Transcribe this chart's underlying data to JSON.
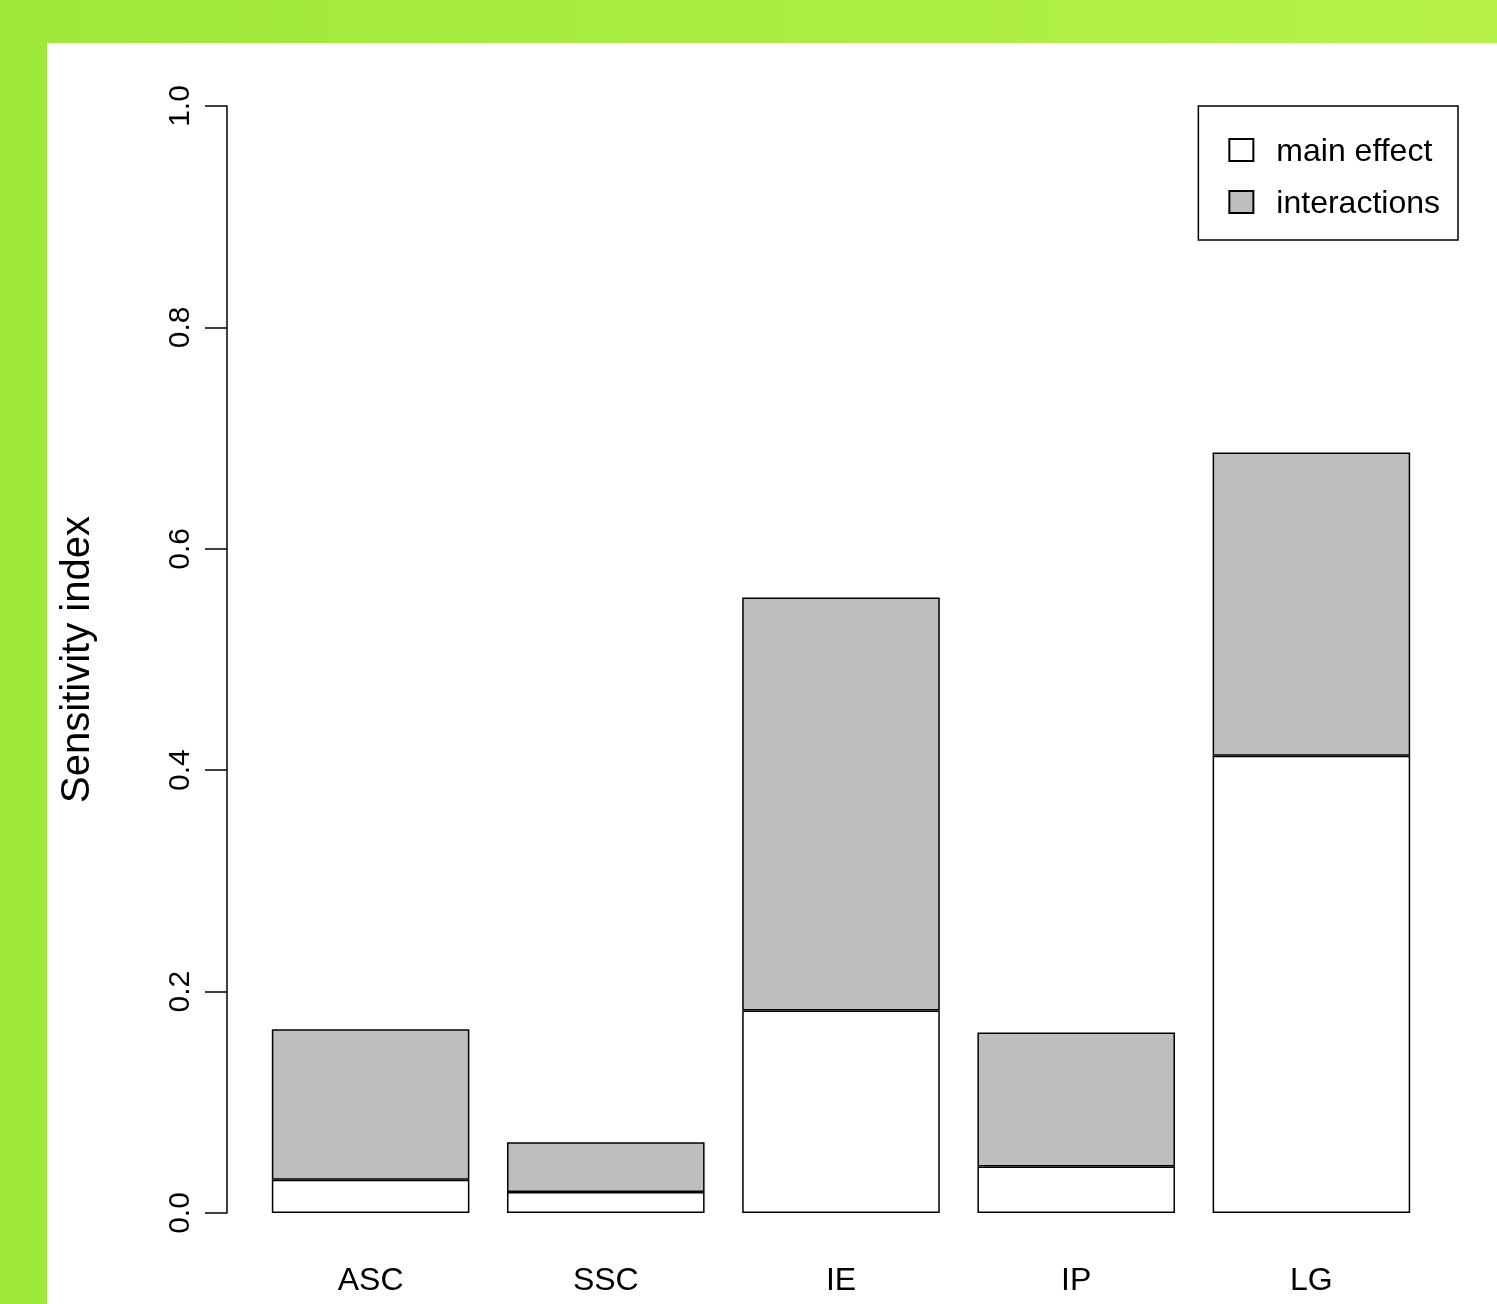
{
  "chart_data": {
    "type": "bar",
    "stacked": true,
    "ylabel": "Sensitivity index",
    "categories": [
      "ASC",
      "SSC",
      "IE",
      "IP",
      "LG"
    ],
    "series": [
      {
        "name": "main effect",
        "color": "#ffffff",
        "values": [
          0.03,
          0.019,
          0.183,
          0.042,
          0.413
        ]
      },
      {
        "name": "interactions",
        "color": "#bebebe",
        "values": [
          0.136,
          0.045,
          0.373,
          0.121,
          0.274
        ]
      }
    ],
    "ylim": [
      0,
      1
    ],
    "yticks": [
      {
        "value": 0,
        "label": "0.0"
      },
      {
        "value": 0.2,
        "label": "0.2"
      },
      {
        "value": 0.4,
        "label": "0.4"
      },
      {
        "value": 0.6,
        "label": "0.6"
      },
      {
        "value": 0.8,
        "label": "0.8"
      },
      {
        "value": 1,
        "label": "1.0"
      }
    ],
    "grid": false,
    "legend": "top right"
  }
}
